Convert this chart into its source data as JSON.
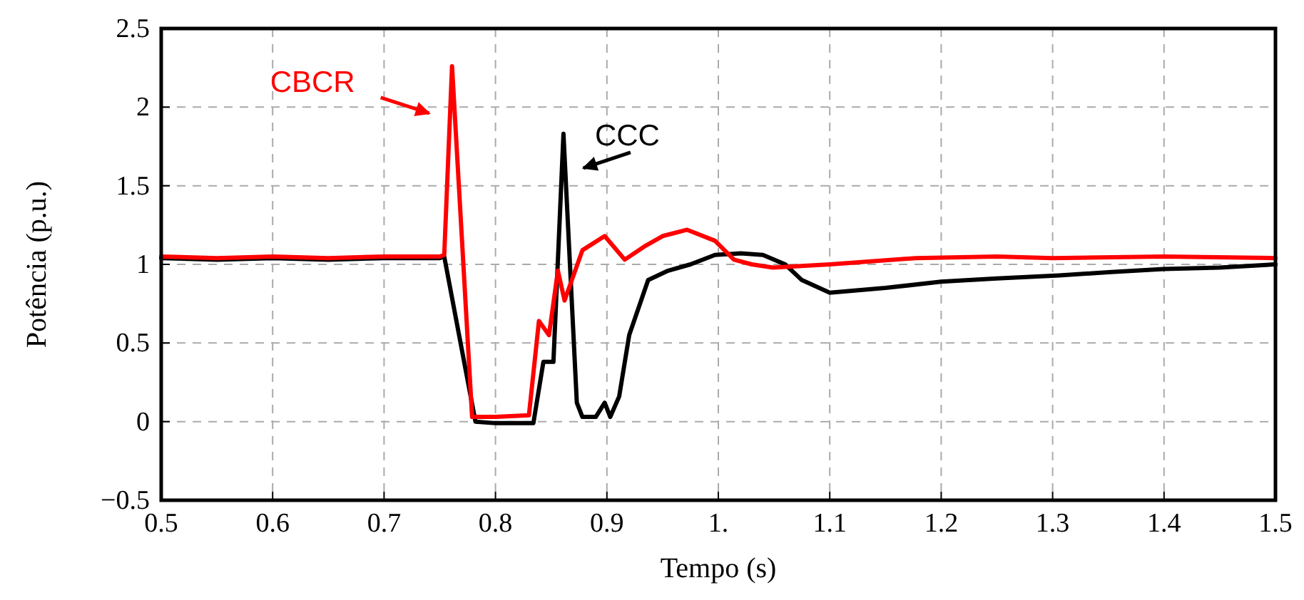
{
  "chart_data": {
    "type": "line",
    "xlabel": "Tempo (s)",
    "ylabel": "Potência (p.u.)",
    "xlim": [
      0.5,
      1.5
    ],
    "ylim": [
      -0.5,
      2.5
    ],
    "xticks": [
      0.5,
      0.6,
      0.7,
      0.8,
      0.9,
      {
        "value": 1,
        "label": "1."
      },
      1.1,
      1.2,
      1.3,
      1.4,
      1.5
    ],
    "yticks": [
      -0.5,
      0,
      0.5,
      1,
      1.5,
      2,
      2.5
    ],
    "grid": true,
    "line_style": "solid",
    "series": [
      {
        "name": "CCC",
        "color": "#000000",
        "x": [
          0.5,
          0.55,
          0.6,
          0.65,
          0.7,
          0.75,
          0.754,
          0.782,
          0.8,
          0.834,
          0.843,
          0.852,
          0.861,
          0.873,
          0.878,
          0.89,
          0.898,
          0.903,
          0.911,
          0.92,
          0.937,
          0.955,
          0.975,
          0.997,
          1.02,
          1.04,
          1.06,
          1.075,
          1.1,
          1.15,
          1.2,
          1.25,
          1.306,
          1.35,
          1.4,
          1.45,
          1.5
        ],
        "values": [
          1.04,
          1.03,
          1.04,
          1.03,
          1.04,
          1.04,
          1.05,
          0.0,
          -0.01,
          -0.01,
          0.38,
          0.38,
          1.83,
          0.12,
          0.03,
          0.03,
          0.12,
          0.03,
          0.16,
          0.55,
          0.9,
          0.96,
          1.0,
          1.06,
          1.07,
          1.06,
          1.0,
          0.9,
          0.82,
          0.85,
          0.89,
          0.91,
          0.93,
          0.95,
          0.97,
          0.98,
          1.0
        ]
      },
      {
        "name": "CBCR",
        "color": "#ff0000",
        "x": [
          0.5,
          0.55,
          0.6,
          0.65,
          0.7,
          0.75,
          0.754,
          0.761,
          0.779,
          0.8,
          0.83,
          0.839,
          0.848,
          0.856,
          0.862,
          0.878,
          0.898,
          0.916,
          0.935,
          0.95,
          0.972,
          0.997,
          1.014,
          1.03,
          1.049,
          1.1,
          1.177,
          1.25,
          1.3,
          1.4,
          1.5
        ],
        "values": [
          1.05,
          1.04,
          1.05,
          1.04,
          1.05,
          1.05,
          1.06,
          2.26,
          0.03,
          0.03,
          0.04,
          0.64,
          0.55,
          0.96,
          0.77,
          1.09,
          1.18,
          1.03,
          1.12,
          1.18,
          1.22,
          1.15,
          1.03,
          1.0,
          0.98,
          1.0,
          1.04,
          1.05,
          1.04,
          1.05,
          1.04
        ]
      }
    ]
  }
}
